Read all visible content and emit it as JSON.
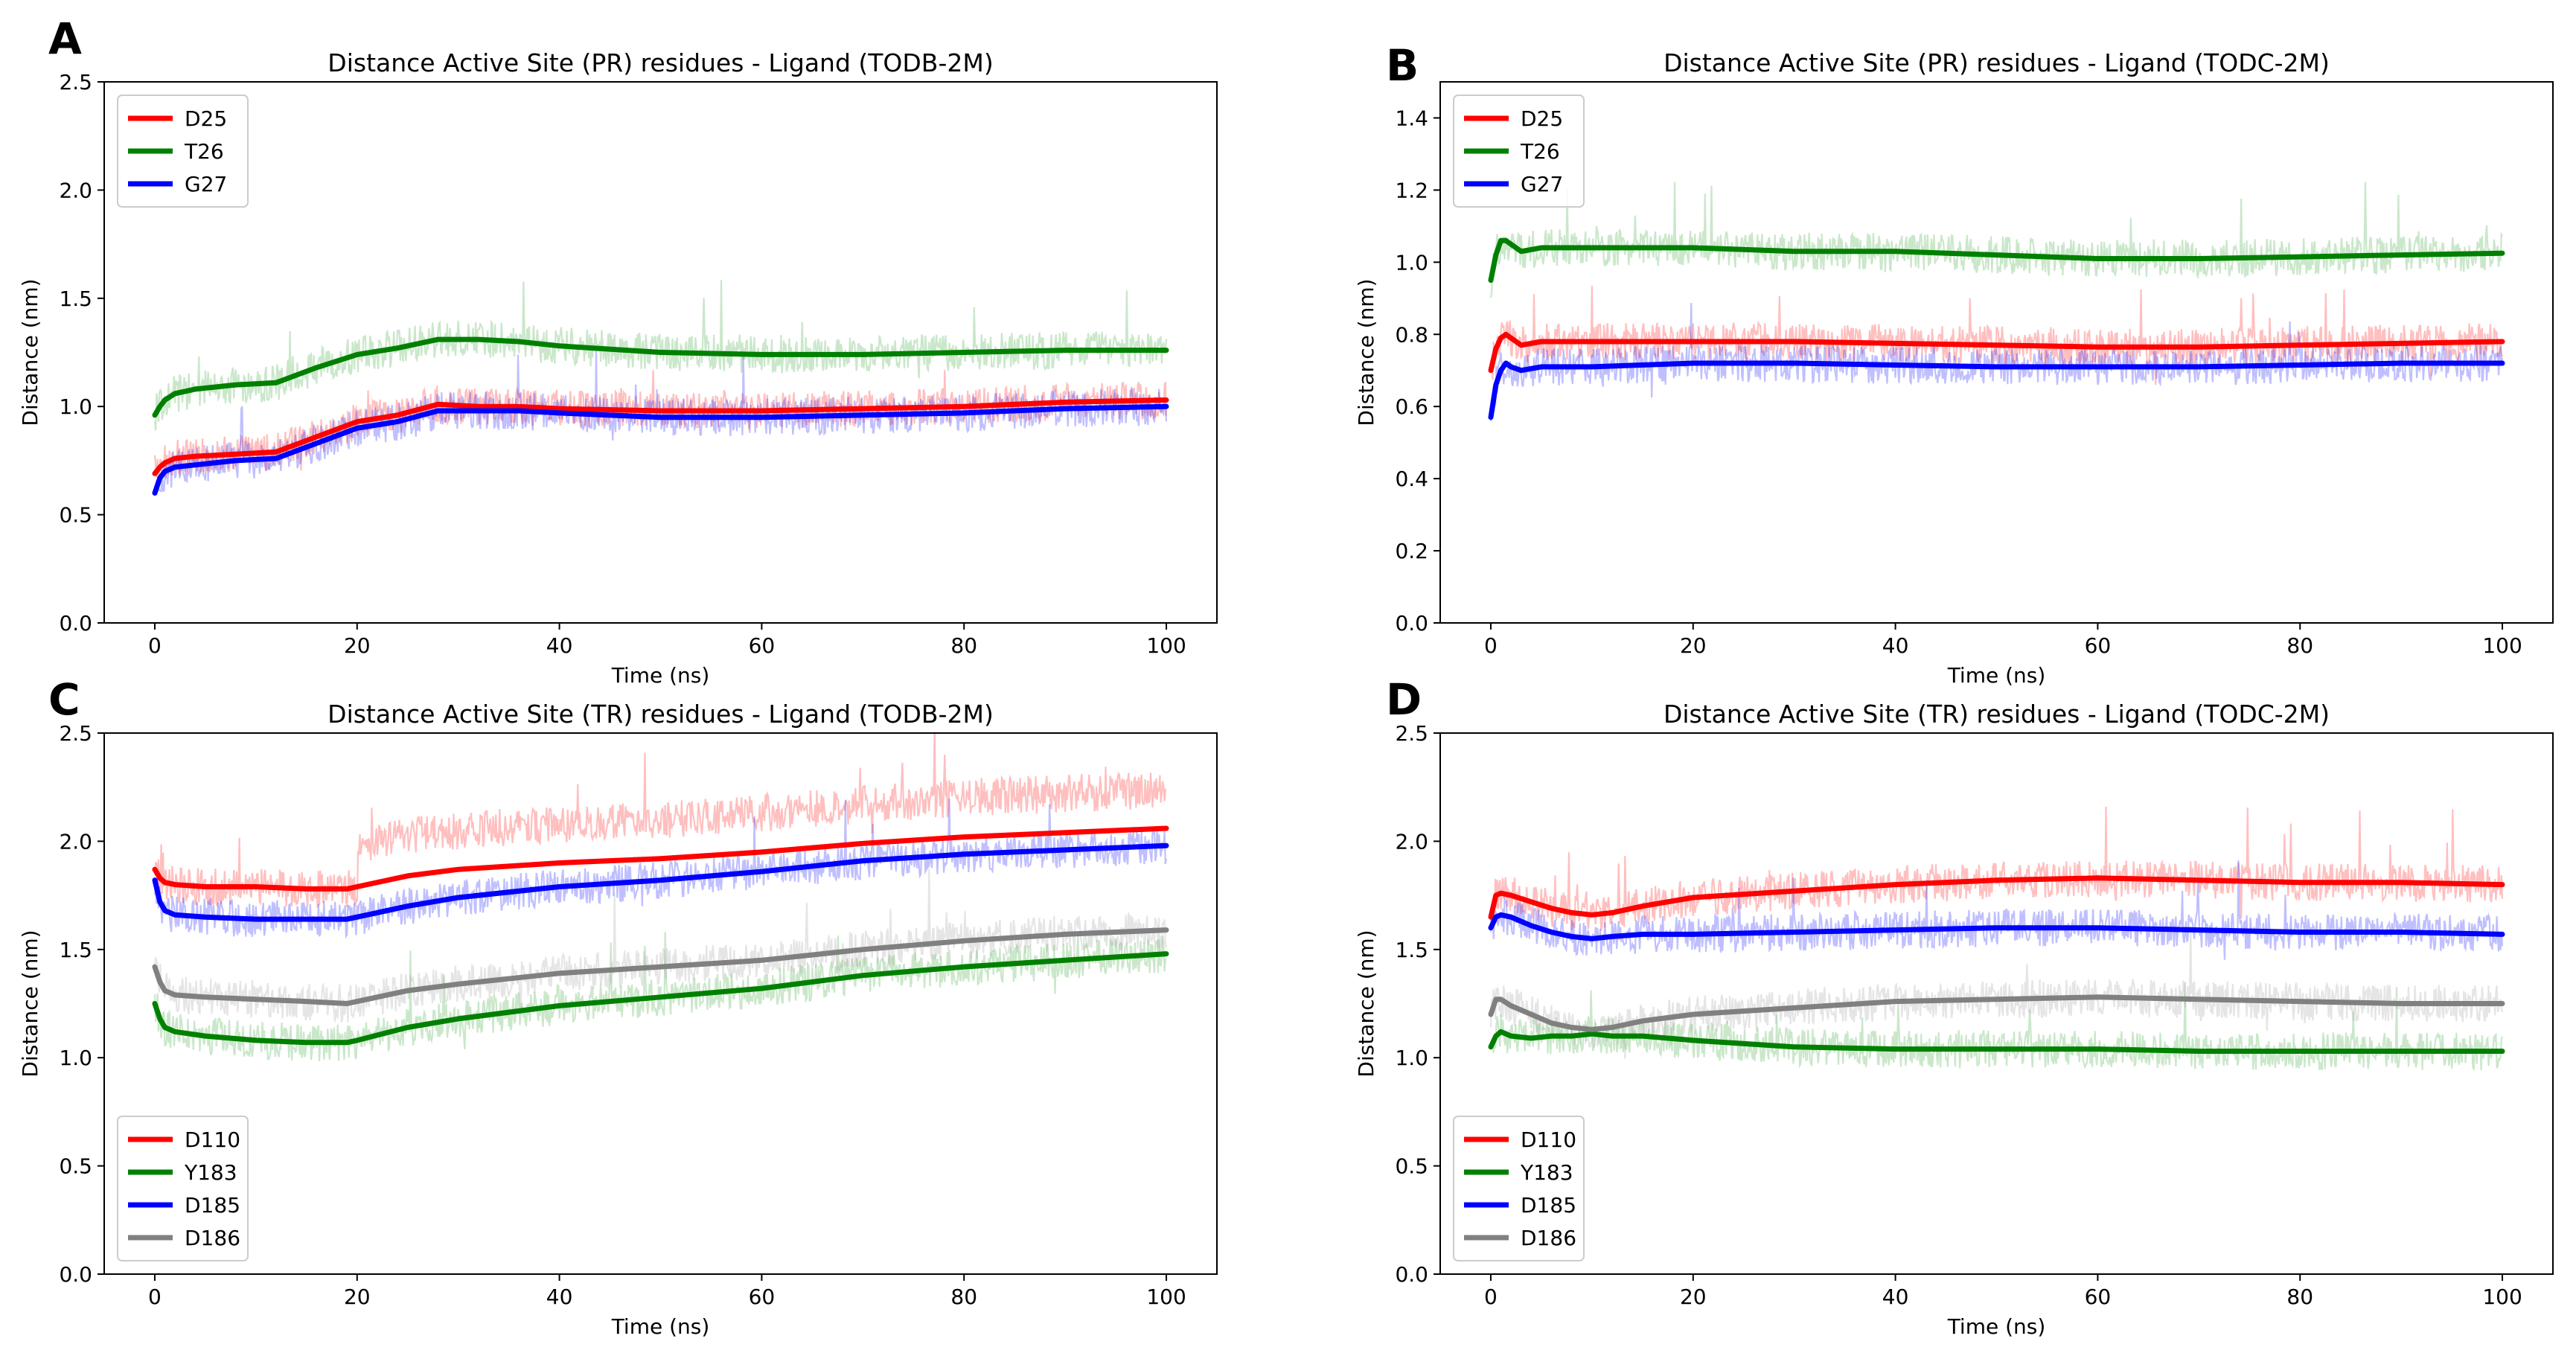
{
  "chart_data": [
    {
      "panel": "A",
      "type": "line",
      "title": "Distance Active Site (PR) residues - Ligand (TODB-2M)",
      "xlabel": "Time (ns)",
      "ylabel": "Distance (nm)",
      "xlim": [
        -5,
        105
      ],
      "ylim": [
        0.0,
        2.5
      ],
      "xticks": [
        "0",
        "20",
        "40",
        "60",
        "80",
        "100"
      ],
      "yticks": [
        "0.0",
        "0.5",
        "1.0",
        "1.5",
        "2.0",
        "2.5"
      ],
      "legend": "top-left",
      "series": [
        {
          "name": "D25",
          "color": "#ff0000",
          "x": [
            0,
            0.5,
            1,
            2,
            4,
            8,
            12,
            16,
            20,
            24,
            28,
            32,
            36,
            40,
            50,
            60,
            70,
            80,
            90,
            100
          ],
          "y": [
            0.69,
            0.72,
            0.74,
            0.76,
            0.77,
            0.78,
            0.79,
            0.86,
            0.93,
            0.96,
            1.01,
            1.0,
            1.0,
            0.99,
            0.98,
            0.98,
            0.99,
            1.0,
            1.02,
            1.03
          ]
        },
        {
          "name": "T26",
          "color": "#008000",
          "x": [
            0,
            0.5,
            1,
            2,
            4,
            8,
            12,
            16,
            20,
            24,
            28,
            32,
            36,
            40,
            50,
            60,
            70,
            80,
            90,
            100
          ],
          "y": [
            0.96,
            1.0,
            1.03,
            1.06,
            1.08,
            1.1,
            1.11,
            1.18,
            1.24,
            1.27,
            1.31,
            1.31,
            1.3,
            1.28,
            1.25,
            1.24,
            1.24,
            1.25,
            1.26,
            1.26
          ]
        },
        {
          "name": "G27",
          "color": "#0000ff",
          "x": [
            0,
            0.5,
            1,
            2,
            4,
            8,
            12,
            16,
            20,
            24,
            28,
            32,
            36,
            40,
            50,
            60,
            70,
            80,
            90,
            100
          ],
          "y": [
            0.6,
            0.67,
            0.7,
            0.72,
            0.73,
            0.75,
            0.76,
            0.83,
            0.9,
            0.93,
            0.98,
            0.98,
            0.98,
            0.97,
            0.95,
            0.95,
            0.96,
            0.97,
            0.99,
            1.0
          ]
        }
      ]
    },
    {
      "panel": "B",
      "type": "line",
      "title": "Distance Active Site (PR) residues - Ligand (TODC-2M)",
      "xlabel": "Time (ns)",
      "ylabel": "Distance (nm)",
      "xlim": [
        -5,
        105
      ],
      "ylim": [
        0.0,
        1.5
      ],
      "xticks": [
        "0",
        "20",
        "40",
        "60",
        "80",
        "100"
      ],
      "yticks": [
        "0.0",
        "0.2",
        "0.4",
        "0.6",
        "0.8",
        "1.0",
        "1.2",
        "1.4"
      ],
      "legend": "top-left",
      "series": [
        {
          "name": "D25",
          "color": "#ff0000",
          "x": [
            0,
            0.5,
            1,
            1.5,
            2,
            3,
            5,
            10,
            20,
            30,
            40,
            50,
            60,
            70,
            80,
            90,
            100
          ],
          "y": [
            0.7,
            0.76,
            0.79,
            0.8,
            0.79,
            0.77,
            0.78,
            0.78,
            0.78,
            0.78,
            0.775,
            0.77,
            0.765,
            0.765,
            0.77,
            0.775,
            0.78
          ]
        },
        {
          "name": "T26",
          "color": "#008000",
          "x": [
            0,
            0.5,
            1,
            1.5,
            2,
            3,
            5,
            10,
            20,
            30,
            40,
            50,
            60,
            70,
            80,
            90,
            100
          ],
          "y": [
            0.95,
            1.02,
            1.06,
            1.06,
            1.05,
            1.03,
            1.04,
            1.04,
            1.04,
            1.03,
            1.03,
            1.02,
            1.01,
            1.01,
            1.015,
            1.02,
            1.025
          ]
        },
        {
          "name": "G27",
          "color": "#0000ff",
          "x": [
            0,
            0.5,
            1,
            1.5,
            2,
            3,
            5,
            10,
            20,
            30,
            40,
            50,
            60,
            70,
            80,
            90,
            100
          ],
          "y": [
            0.57,
            0.66,
            0.7,
            0.72,
            0.71,
            0.7,
            0.71,
            0.71,
            0.72,
            0.72,
            0.715,
            0.71,
            0.71,
            0.71,
            0.715,
            0.72,
            0.72
          ]
        }
      ]
    },
    {
      "panel": "C",
      "type": "line",
      "title": "Distance Active Site (TR) residues - Ligand (TODB-2M)",
      "xlabel": "Time (ns)",
      "ylabel": "Distance (nm)",
      "xlim": [
        -5,
        105
      ],
      "ylim": [
        0.0,
        2.5
      ],
      "xticks": [
        "0",
        "20",
        "40",
        "60",
        "80",
        "100"
      ],
      "yticks": [
        "0.0",
        "0.5",
        "1.0",
        "1.5",
        "2.0",
        "2.5"
      ],
      "legend": "bottom-left",
      "series": [
        {
          "name": "D110",
          "color": "#ff0000",
          "x": [
            0,
            0.5,
            1,
            2,
            5,
            10,
            15,
            19,
            20,
            25,
            30,
            40,
            50,
            60,
            70,
            80,
            90,
            100
          ],
          "y": [
            1.87,
            1.83,
            1.81,
            1.8,
            1.79,
            1.79,
            1.78,
            1.78,
            1.79,
            1.84,
            1.87,
            1.9,
            1.92,
            1.95,
            1.99,
            2.02,
            2.04,
            2.06
          ]
        },
        {
          "name": "Y183",
          "color": "#008000",
          "x": [
            0,
            0.5,
            1,
            2,
            5,
            10,
            15,
            19,
            20,
            25,
            30,
            40,
            50,
            60,
            70,
            80,
            90,
            100
          ],
          "y": [
            1.25,
            1.18,
            1.14,
            1.12,
            1.1,
            1.08,
            1.07,
            1.07,
            1.08,
            1.14,
            1.18,
            1.24,
            1.28,
            1.32,
            1.38,
            1.42,
            1.45,
            1.48
          ]
        },
        {
          "name": "D185",
          "color": "#0000ff",
          "x": [
            0,
            0.5,
            1,
            2,
            5,
            10,
            15,
            19,
            20,
            25,
            30,
            40,
            50,
            60,
            70,
            80,
            90,
            100
          ],
          "y": [
            1.82,
            1.72,
            1.68,
            1.66,
            1.65,
            1.64,
            1.64,
            1.64,
            1.65,
            1.7,
            1.74,
            1.79,
            1.82,
            1.86,
            1.91,
            1.94,
            1.96,
            1.98
          ]
        },
        {
          "name": "D186",
          "color": "#808080",
          "x": [
            0,
            0.5,
            1,
            2,
            5,
            10,
            15,
            19,
            20,
            25,
            30,
            40,
            50,
            60,
            70,
            80,
            90,
            100
          ],
          "y": [
            1.42,
            1.35,
            1.31,
            1.29,
            1.28,
            1.27,
            1.26,
            1.25,
            1.26,
            1.31,
            1.34,
            1.39,
            1.42,
            1.45,
            1.5,
            1.54,
            1.57,
            1.59
          ]
        }
      ]
    },
    {
      "panel": "D",
      "type": "line",
      "title": "Distance Active Site (TR) residues - Ligand (TODC-2M)",
      "xlabel": "Time (ns)",
      "ylabel": "Distance (nm)",
      "xlim": [
        -5,
        105
      ],
      "ylim": [
        0.0,
        2.5
      ],
      "xticks": [
        "0",
        "20",
        "40",
        "60",
        "80",
        "100"
      ],
      "yticks": [
        "0.0",
        "0.5",
        "1.0",
        "1.5",
        "2.0",
        "2.5"
      ],
      "legend": "bottom-left",
      "series": [
        {
          "name": "D110",
          "color": "#ff0000",
          "x": [
            0,
            0.5,
            1,
            2,
            4,
            6,
            8,
            10,
            12,
            15,
            20,
            30,
            40,
            50,
            60,
            70,
            80,
            90,
            100
          ],
          "y": [
            1.65,
            1.75,
            1.76,
            1.75,
            1.72,
            1.69,
            1.67,
            1.66,
            1.67,
            1.7,
            1.74,
            1.77,
            1.8,
            1.82,
            1.83,
            1.82,
            1.81,
            1.81,
            1.8
          ]
        },
        {
          "name": "Y183",
          "color": "#008000",
          "x": [
            0,
            0.5,
            1,
            2,
            4,
            6,
            8,
            10,
            12,
            15,
            20,
            30,
            40,
            50,
            60,
            70,
            80,
            90,
            100
          ],
          "y": [
            1.05,
            1.1,
            1.12,
            1.1,
            1.09,
            1.1,
            1.1,
            1.11,
            1.1,
            1.1,
            1.08,
            1.05,
            1.04,
            1.04,
            1.04,
            1.03,
            1.03,
            1.03,
            1.03
          ]
        },
        {
          "name": "D185",
          "color": "#0000ff",
          "x": [
            0,
            0.5,
            1,
            2,
            4,
            6,
            8,
            10,
            12,
            15,
            20,
            30,
            40,
            50,
            60,
            70,
            80,
            90,
            100
          ],
          "y": [
            1.6,
            1.65,
            1.66,
            1.65,
            1.61,
            1.58,
            1.56,
            1.55,
            1.56,
            1.57,
            1.57,
            1.58,
            1.59,
            1.6,
            1.6,
            1.59,
            1.58,
            1.58,
            1.57
          ]
        },
        {
          "name": "D186",
          "color": "#808080",
          "x": [
            0,
            0.5,
            1,
            2,
            4,
            6,
            8,
            10,
            12,
            15,
            20,
            30,
            40,
            50,
            60,
            70,
            80,
            90,
            100
          ],
          "y": [
            1.2,
            1.27,
            1.27,
            1.24,
            1.2,
            1.16,
            1.14,
            1.13,
            1.14,
            1.17,
            1.2,
            1.23,
            1.26,
            1.27,
            1.28,
            1.27,
            1.26,
            1.25,
            1.25
          ]
        }
      ]
    }
  ]
}
